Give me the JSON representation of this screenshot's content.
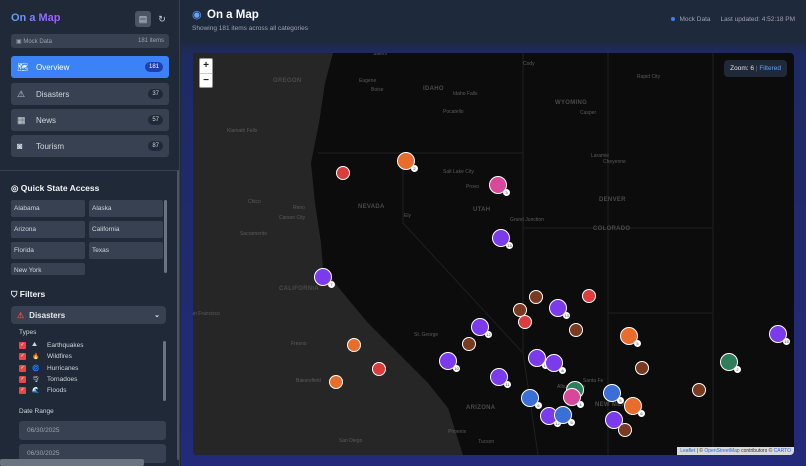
{
  "sidebar": {
    "brand": "On a Map",
    "mock_label": "Mock Data",
    "mock_count": "181 items",
    "nav": [
      {
        "label": "Overview",
        "count": "181",
        "icon": "map-icon"
      },
      {
        "label": "Disasters",
        "count": "37",
        "icon": "warning-icon"
      },
      {
        "label": "News",
        "count": "57",
        "icon": "newspaper-icon"
      },
      {
        "label": "Tourism",
        "count": "87",
        "icon": "camera-icon"
      }
    ],
    "quick_title": "Quick State Access",
    "states": [
      "Alabama",
      "Alaska",
      "Arizona",
      "California",
      "Florida",
      "Texas",
      "New York"
    ],
    "filters_title": "Filters",
    "dropdown": "Disasters",
    "types_label": "Types",
    "types": [
      {
        "label": "Earthquakes",
        "emoji": "⛰"
      },
      {
        "label": "Wildfires",
        "emoji": "🔥"
      },
      {
        "label": "Hurricanes",
        "emoji": "🌀"
      },
      {
        "label": "Tornadoes",
        "emoji": "🌪"
      },
      {
        "label": "Floods",
        "emoji": "🌊"
      }
    ],
    "date_label": "Date Range",
    "date_from": "06/30/2025",
    "date_to": "06/30/2025"
  },
  "header": {
    "title": "On a Map",
    "subtitle": "Showing 181 items across all categories",
    "source": "Mock Data",
    "updated": "Last updated: 4:52:18 PM"
  },
  "map": {
    "zoom_in": "+",
    "zoom_out": "−",
    "zoom_label": "Zoom: 6",
    "sep": "|",
    "filter_state": "Filtered",
    "attr_leaflet": "Leaflet",
    "attr_mid": " | © ",
    "attr_osm": "OpenStreetMap",
    "attr_contrib": " contributors © ",
    "attr_carto": "CARTO",
    "labels": [
      "Salem",
      "Eugene",
      "OREGON",
      "IDAHO",
      "Boise",
      "Idaho Falls",
      "Pocatello",
      "WYOMING",
      "Cody",
      "Casper",
      "Rapid City",
      "Klamath Falls",
      "Chico",
      "Reno",
      "Carson City",
      "Sacramento",
      "NEVADA",
      "Ely",
      "Salt Lake City",
      "Provo",
      "UTAH",
      "Grand Junction",
      "DENVER",
      "COLORADO",
      "Laramie",
      "Cheyenne",
      "CALIFORNIA",
      "San Francisco",
      "Fresno",
      "Bakersfield",
      "St. George",
      "ARIZONA",
      "Phoenix",
      "Tucson",
      "NEW MEXICO",
      "Albuquerque",
      "Santa Fe",
      "El Paso",
      "San Diego"
    ],
    "colors": {
      "purple": "#7c3aed",
      "orange": "#ea6c2a",
      "red": "#dc3c3c",
      "brown": "#7a3a1f",
      "green": "#2e7d5b",
      "pink": "#d9479b",
      "blue": "#3b6fd8"
    }
  }
}
